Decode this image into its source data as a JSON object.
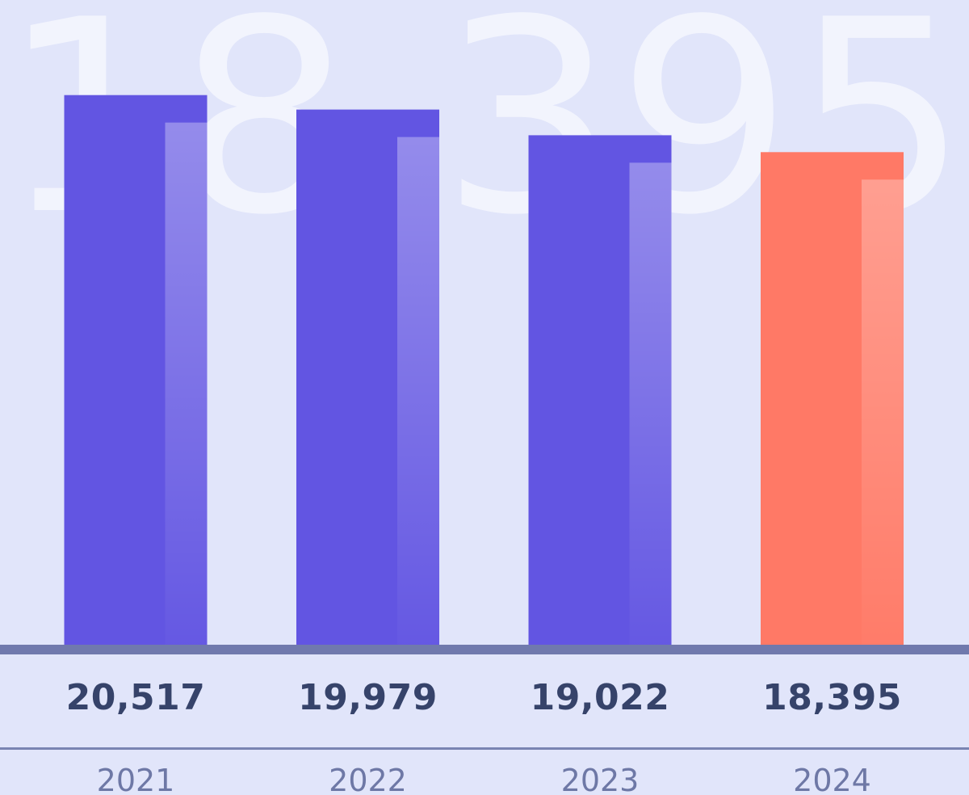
{
  "chart_data": {
    "type": "bar",
    "title": "",
    "xlabel": "",
    "ylabel": "",
    "watermark": "18,395",
    "categories": [
      "2021",
      "2022",
      "2023",
      "2024"
    ],
    "values": [
      20517,
      19979,
      19022,
      18395
    ],
    "value_labels": [
      "20,517",
      "19,979",
      "19,022",
      "18,395"
    ],
    "highlight_index": 3,
    "ylim": [
      0,
      21500
    ],
    "grid": false,
    "legend": "none",
    "colors": {
      "background": "#e1e5fa",
      "bar": "#6255e2",
      "bar_highlight": "#ff7966",
      "baseline": "#7079ad",
      "watermark": "#f2f4fd",
      "value_text": "#36436a",
      "year_text": "#6e78a6"
    }
  }
}
